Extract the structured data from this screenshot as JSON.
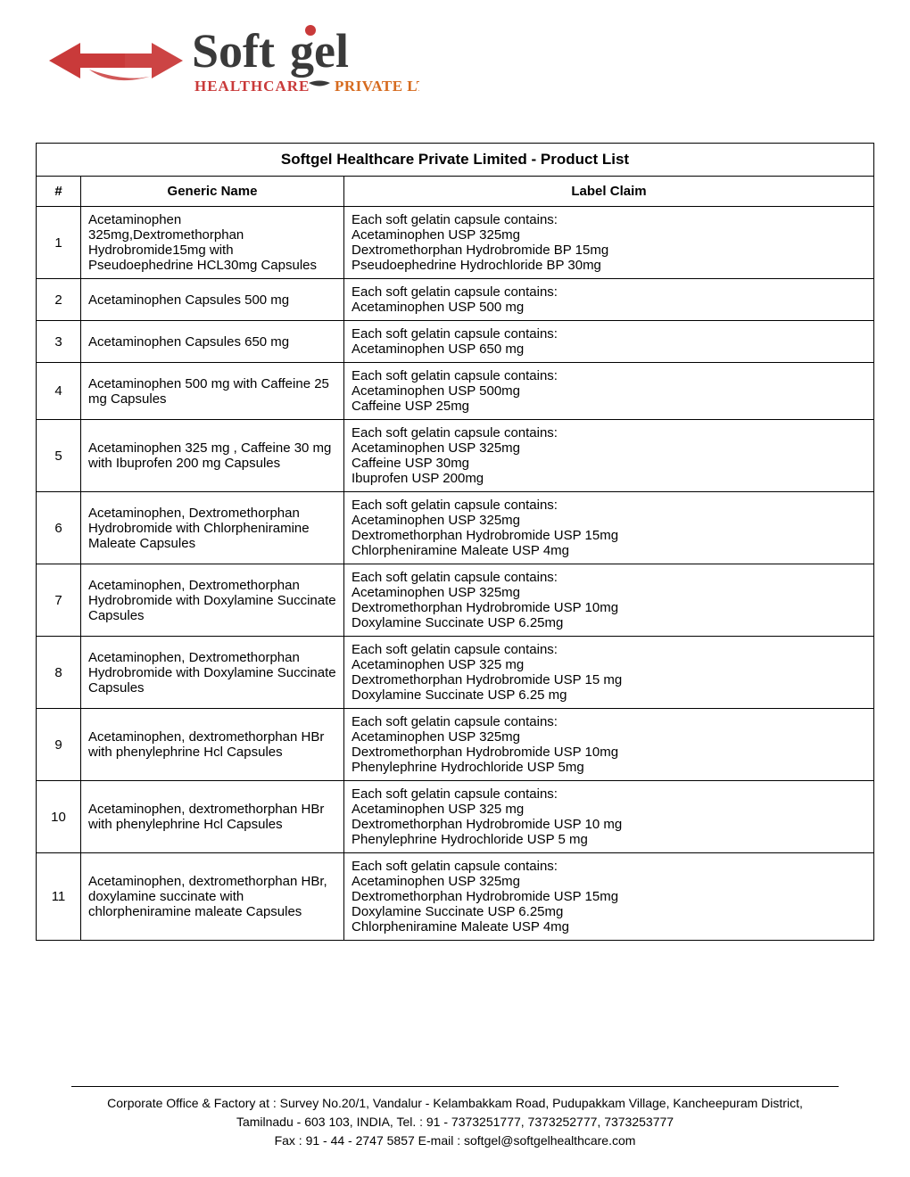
{
  "logo": {
    "brandTop": "Softgel",
    "brandBottomLeft": "HEALTHCARE",
    "brandBottomRight": "PRIVATE LTD.",
    "arrowColor": "#c93a3a",
    "brandTopColor": "#3a3a3a",
    "brandBottomLeftColor": "#c93a3a",
    "brandBottomRightColor": "#d66b1f",
    "dotColor": "#c93a3a"
  },
  "table": {
    "title": "Softgel Healthcare Private Limited - Product List",
    "columns": [
      "#",
      "Generic Name",
      "Label Claim"
    ],
    "rows": [
      {
        "num": "1",
        "generic": "Acetaminophen 325mg,Dextromethorphan Hydrobromide15mg with Pseudoephedrine HCL30mg Capsules",
        "label": "Each soft gelatin capsule contains:\nAcetaminophen   USP 325mg\nDextromethorphan Hydrobromide  BP 15mg\nPseudoephedrine Hydrochloride  BP 30mg"
      },
      {
        "num": "2",
        "generic": "Acetaminophen Capsules 500 mg",
        "label": "Each soft gelatin capsule contains:\nAcetaminophen USP  500 mg"
      },
      {
        "num": "3",
        "generic": "Acetaminophen Capsules 650 mg",
        "label": "Each soft gelatin capsule contains:\nAcetaminophen USP  650 mg"
      },
      {
        "num": "4",
        "generic": "Acetaminophen 500 mg  with Caffeine 25 mg Capsules",
        "label": "Each soft gelatin capsule contains:\nAcetaminophen  USP  500mg\nCaffeine USP  25mg"
      },
      {
        "num": "5",
        "generic": "Acetaminophen 325 mg , Caffeine 30 mg  with Ibuprofen 200 mg Capsules",
        "label": "Each soft gelatin capsule contains:\nAcetaminophen   USP 325mg\nCaffeine  USP 30mg\nIbuprofen  USP  200mg"
      },
      {
        "num": "6",
        "generic": "Acetaminophen, Dextromethorphan Hydrobromide with Chlorpheniramine Maleate Capsules",
        "label": "Each soft gelatin capsule contains:\nAcetaminophen  USP 325mg\nDextromethorphan Hydrobromide USP 15mg\nChlorpheniramine Maleate  USP 4mg"
      },
      {
        "num": "7",
        "generic": "Acetaminophen, Dextromethorphan Hydrobromide with Doxylamine Succinate Capsules",
        "label": "Each soft gelatin capsule contains:\nAcetaminophen  USP 325mg\nDextromethorphan Hydrobromide  USP 10mg\nDoxylamine Succinate  USP 6.25mg"
      },
      {
        "num": "8",
        "generic": "Acetaminophen, Dextromethorphan Hydrobromide with Doxylamine Succinate Capsules",
        "label": "Each soft gelatin capsule contains:\nAcetaminophen USP 325 mg\nDextromethorphan Hydrobromide USP 15 mg\nDoxylamine Succinate USP 6.25 mg"
      },
      {
        "num": "9",
        "generic": "Acetaminophen, dextromethorphan HBr with phenylephrine Hcl Capsules",
        "label": "Each soft gelatin capsule contains:\nAcetaminophen     USP 325mg\nDextromethorphan Hydrobromide  USP 10mg\nPhenylephrine Hydrochloride  USP 5mg"
      },
      {
        "num": "10",
        "generic": "Acetaminophen, dextromethorphan HBr with phenylephrine Hcl Capsules",
        "label": "Each soft gelatin capsule contains:\nAcetaminophen USP 325 mg\nDextromethorphan Hydrobromide USP 10 mg\nPhenylephrine Hydrochloride USP 5 mg"
      },
      {
        "num": "11",
        "generic": "Acetaminophen, dextromethorphan HBr, doxylamine succinate with chlorpheniramine maleate Capsules",
        "label": "Each soft gelatin capsule contains:\nAcetaminophen  USP 325mg\nDextromethorphan Hydrobromide USP  15mg\nDoxylamine Succinate USP       6.25mg\nChlorpheniramine Maleate  USP   4mg"
      }
    ]
  },
  "footer": {
    "line1": "Corporate Office & Factory at : Survey No.20/1, Vandalur - Kelambakkam Road, Pudupakkam Village, Kancheepuram District,",
    "line2": "Tamilnadu - 603 103, INDIA, Tel. : 91 - 7373251777, 7373252777, 7373253777",
    "line3": "Fax : 91 - 44 - 2747 5857 E-mail : softgel@softgelhealthcare.com"
  }
}
